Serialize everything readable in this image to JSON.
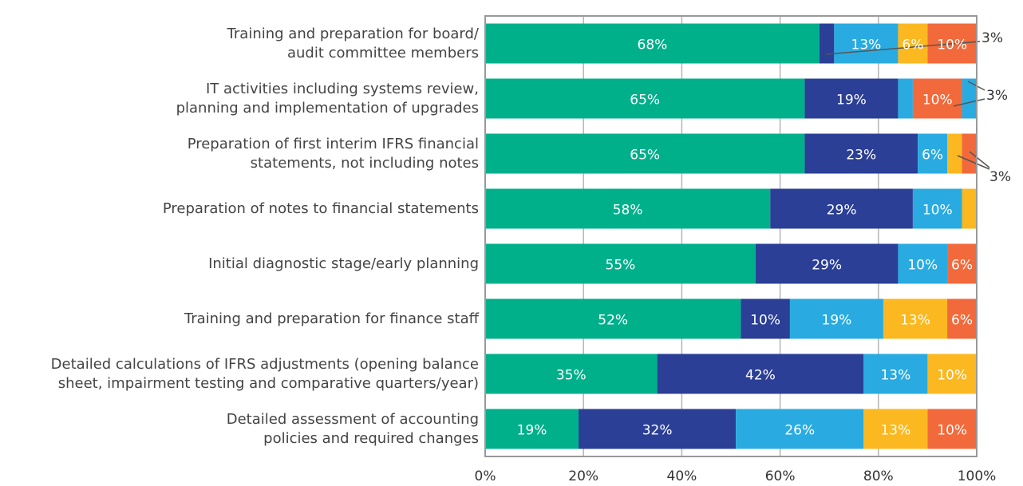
{
  "chart_data": {
    "type": "stacked-bar-horizontal",
    "categories": [
      "Training and preparation for board/\naudit committee members",
      "IT activities including systems review,\nplanning and implementation of upgrades",
      "Preparation of first interim IFRS financial\nstatements, not including notes ",
      "Preparation of notes to financial statements",
      "Initial diagnostic stage/early planning",
      "Training and preparation for finance staff",
      "Detailed calculations of IFRS adjustments (opening balance\nsheet, impairment testing and comparative quarters/year)",
      "Detailed assessment of accounting\npolicies and required changes"
    ],
    "series": [
      {
        "color": "#00b08b",
        "values": [
          68,
          65,
          65,
          58,
          55,
          52,
          35,
          19
        ],
        "value_labels": [
          "68%",
          "65%",
          "65%",
          "58%",
          "55%",
          "52%",
          "35%",
          "19%"
        ]
      },
      {
        "color": "#2b3f97",
        "values": [
          3,
          19,
          23,
          29,
          29,
          10,
          42,
          32
        ],
        "value_labels": [
          null,
          "19%",
          "23%",
          "29%",
          "29%",
          "10%",
          "42%",
          "32%"
        ]
      },
      {
        "color": "#29abe2",
        "values": [
          13,
          3,
          6,
          10,
          10,
          19,
          13,
          26
        ],
        "value_labels": [
          "13%",
          null,
          "6%",
          "10%",
          "10%",
          "19%",
          "13%",
          "26%"
        ]
      },
      {
        "color": "#fbb821",
        "values": [
          6,
          0,
          3,
          3,
          0,
          13,
          10,
          13
        ],
        "value_labels": [
          "6%",
          null,
          null,
          null,
          null,
          "13%",
          "10%",
          "13%"
        ]
      },
      {
        "color": "#f26a3b",
        "values": [
          10,
          10,
          3,
          0,
          6,
          6,
          0,
          10
        ],
        "value_labels": [
          "10%",
          "10%",
          null,
          null,
          "6%",
          "6%",
          null,
          "10%"
        ]
      },
      {
        "color": "#29abe2",
        "values": [
          0,
          3,
          0,
          0,
          0,
          0,
          0,
          0
        ],
        "value_labels": [
          null,
          null,
          null,
          null,
          null,
          null,
          null,
          null
        ]
      }
    ],
    "annotations": [
      "3%",
      "3%",
      "3%"
    ],
    "xlim": [
      0,
      100
    ],
    "xticks": [
      {
        "value": 0,
        "label": "0%"
      },
      {
        "value": 20,
        "label": "20%"
      },
      {
        "value": 40,
        "label": "40%"
      },
      {
        "value": 60,
        "label": "60%"
      },
      {
        "value": 80,
        "label": "80%"
      },
      {
        "value": 100,
        "label": "100%"
      }
    ],
    "grid": true
  }
}
